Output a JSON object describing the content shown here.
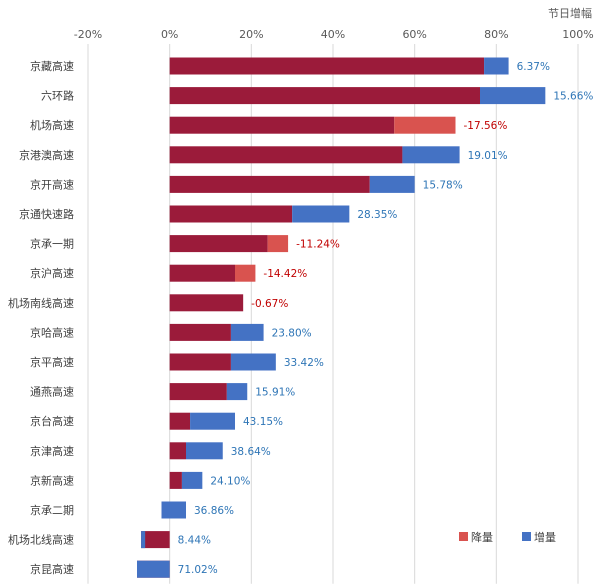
{
  "chart_data": {
    "type": "bar",
    "orientation": "horizontal",
    "stacked": true,
    "unit_label": "节日增幅",
    "xlim": [
      -20,
      100
    ],
    "x_ticks": [
      "-20%",
      "0%",
      "20%",
      "40%",
      "60%",
      "80%",
      "100%"
    ],
    "x_tick_values": [
      -20,
      0,
      20,
      40,
      60,
      80,
      100
    ],
    "grid": true,
    "legend_position": "bottom-right",
    "legend": [
      {
        "name": "降量",
        "color": "#d9534f"
      },
      {
        "name": "增量",
        "color": "#4472c4"
      }
    ],
    "colors": {
      "base": "#9b1b3a",
      "decrease": "#d9534f",
      "increase": "#4472c4",
      "positive_label": "#2e75b6",
      "negative_label": "#c00000"
    },
    "categories": [
      "京藏高速",
      "六环路",
      "机场高速",
      "京港澳高速",
      "京开高速",
      "京通快速路",
      "京承一期",
      "京沪高速",
      "机场南线高速",
      "京哈高速",
      "京平高速",
      "通燕高速",
      "京台高速",
      "京津高速",
      "京新高速",
      "京承二期",
      "机场北线高速",
      "京昆高速"
    ],
    "series": [
      {
        "name": "",
        "role": "base",
        "values": [
          77,
          76,
          55,
          57,
          49,
          30,
          24,
          16,
          18,
          15,
          15,
          14,
          5,
          4,
          3,
          -2,
          -7,
          -8
        ]
      },
      {
        "name": "降量",
        "role": "decrease",
        "values": [
          0,
          0,
          15,
          0,
          0,
          0,
          5,
          5,
          0,
          0,
          0,
          0,
          0,
          0,
          0,
          0,
          0,
          0
        ]
      },
      {
        "name": "增量",
        "role": "increase",
        "values": [
          6,
          16,
          0,
          14,
          11,
          14,
          0,
          0,
          0,
          8,
          11,
          5,
          11,
          9,
          5,
          6,
          1,
          8
        ]
      }
    ],
    "data_labels": [
      "6.37%",
      "15.66%",
      "-17.56%",
      "19.01%",
      "15.78%",
      "28.35%",
      "-11.24%",
      "-14.42%",
      "-0.67%",
      "23.80%",
      "33.42%",
      "15.91%",
      "43.15%",
      "38.64%",
      "24.10%",
      "36.86%",
      "8.44%",
      "71.02%"
    ]
  }
}
